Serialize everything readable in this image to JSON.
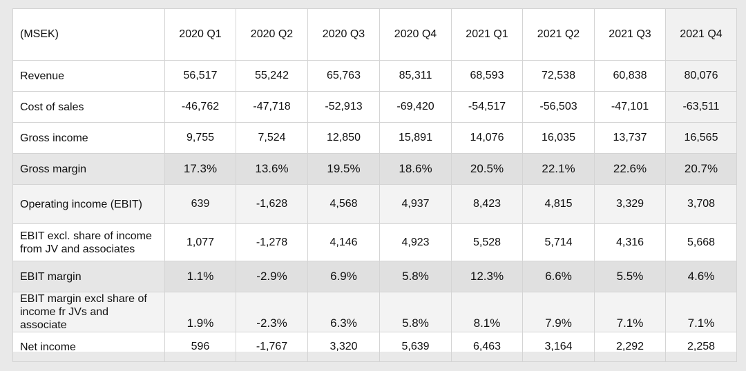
{
  "table": {
    "unit_label": "(MSEK)",
    "columns": [
      "2020 Q1",
      "2020 Q2",
      "2020 Q3",
      "2020 Q4",
      "2021 Q1",
      "2021 Q2",
      "2021 Q3",
      "2021 Q4"
    ],
    "rows": [
      {
        "label": "Revenue",
        "values": [
          "56,517",
          "55,242",
          "65,763",
          "85,311",
          "68,593",
          "72,538",
          "60,838",
          "80,076"
        ]
      },
      {
        "label": "Cost of sales",
        "values": [
          "-46,762",
          "-47,718",
          "-52,913",
          "-69,420",
          "-54,517",
          "-56,503",
          "-47,101",
          "-63,511"
        ]
      },
      {
        "label": "Gross income",
        "values": [
          "9,755",
          "7,524",
          "12,850",
          "15,891",
          "14,076",
          "16,035",
          "13,737",
          "16,565"
        ]
      },
      {
        "label": "Gross margin",
        "values": [
          "17.3%",
          "13.6%",
          "19.5%",
          "18.6%",
          "20.5%",
          "22.1%",
          "22.6%",
          "20.7%"
        ]
      },
      {
        "label": "Operating income (EBIT)",
        "values": [
          "639",
          "-1,628",
          "4,568",
          "4,937",
          "8,423",
          "4,815",
          "3,329",
          "3,708"
        ]
      },
      {
        "label_line1": "EBIT excl. share of income",
        "label_line2": "from JV and associates",
        "values": [
          "1,077",
          "-1,278",
          "4,146",
          "4,923",
          "5,528",
          "5,714",
          "4,316",
          "5,668"
        ]
      },
      {
        "label": "EBIT margin",
        "values": [
          "1.1%",
          "-2.9%",
          "6.9%",
          "5.8%",
          "12.3%",
          "6.6%",
          "5.5%",
          "4.6%"
        ]
      },
      {
        "label_line1": "EBIT margin excl share of",
        "label_line2": "income fr JVs and associate",
        "values": [
          "1.9%",
          "-2.3%",
          "6.3%",
          "5.8%",
          "8.1%",
          "7.9%",
          "7.1%",
          "7.1%"
        ]
      },
      {
        "label": "Net income",
        "values": [
          "596",
          "-1,767",
          "3,320",
          "5,639",
          "6,463",
          "3,164",
          "2,292",
          "2,258"
        ]
      }
    ]
  }
}
